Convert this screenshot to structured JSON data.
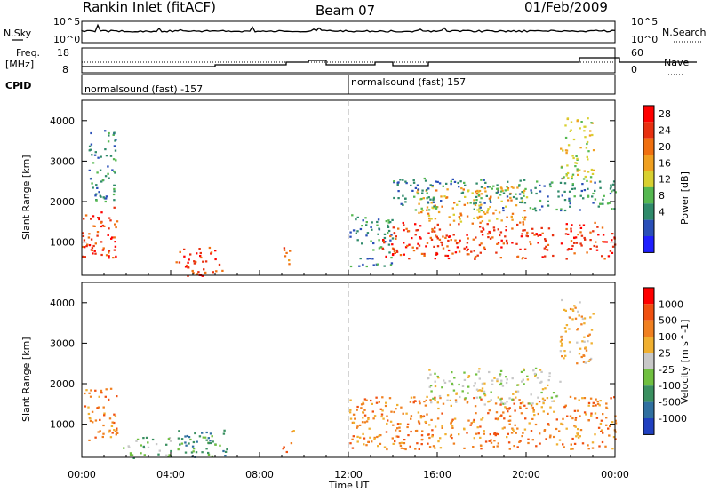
{
  "header": {
    "title": "Rankin Inlet (fitACF)",
    "beam": "Beam 07",
    "date": "01/Feb/2009"
  },
  "noise_panel": {
    "left_label": "N.Sky",
    "right_label": "N.Search",
    "y_ticks_left": [
      "10^5",
      "10^0"
    ],
    "y_ticks_right": [
      "10^5",
      "10^0"
    ]
  },
  "freq_panel": {
    "left_label": "Freq.",
    "left_unit": "[MHz]",
    "right_label": "Nave",
    "y_ticks_left": [
      "18",
      "8"
    ],
    "y_ticks_right": [
      "60",
      "0"
    ]
  },
  "cpid_panel": {
    "label": "CPID",
    "segments": [
      "normalsound (fast) -157",
      "normalsound (fast) 157"
    ]
  },
  "axes": {
    "ylabel": "Slant Range [km]",
    "xlabel": "Time UT",
    "y_ticks": [
      "4000",
      "3000",
      "2000",
      "1000"
    ],
    "x_ticks": [
      "00:00",
      "04:00",
      "08:00",
      "12:00",
      "16:00",
      "20:00",
      "00:00"
    ]
  },
  "colors": {
    "power_scale": [
      "#1f1fff",
      "#2a4fb8",
      "#2f8a6a",
      "#55b850",
      "#d8d030",
      "#f0a020",
      "#f07010",
      "#e83010",
      "#ff0000"
    ],
    "velocity_scale": [
      "#2040c0",
      "#3070a0",
      "#3a9060",
      "#70c040",
      "#c8c8c8",
      "#f0b030",
      "#f08020",
      "#f05010",
      "#ff0000"
    ]
  },
  "chart_data": [
    {
      "type": "heatmap",
      "title": "",
      "xlabel": "",
      "ylabel": "Slant Range [km]",
      "quantity": "Power",
      "colorbar_label": "Power [dB]",
      "colorbar_ticks": [
        "28",
        "24",
        "20",
        "16",
        "12",
        "8",
        "4"
      ],
      "xlim_hours": [
        0,
        24
      ],
      "ylim_km": [
        180,
        4500
      ],
      "regions": [
        {
          "t0": 0.0,
          "t1": 1.6,
          "r0": 600,
          "r1": 1900,
          "level": 7
        },
        {
          "t0": 0.3,
          "t1": 1.5,
          "r0": 2000,
          "r1": 3800,
          "level": 2
        },
        {
          "t0": 4.2,
          "t1": 6.5,
          "r0": 180,
          "r1": 900,
          "level": 7
        },
        {
          "t0": 9.0,
          "t1": 9.5,
          "r0": 300,
          "r1": 900,
          "level": 6
        },
        {
          "t0": 12.0,
          "t1": 14.0,
          "r0": 400,
          "r1": 1700,
          "level": 2
        },
        {
          "t0": 13.5,
          "t1": 24.0,
          "r0": 600,
          "r1": 1500,
          "level": 7
        },
        {
          "t0": 15.0,
          "t1": 20.0,
          "r0": 1500,
          "r1": 2400,
          "level": 5
        },
        {
          "t0": 14.0,
          "t1": 24.0,
          "r0": 1800,
          "r1": 2600,
          "level": 2
        },
        {
          "t0": 21.5,
          "t1": 23.0,
          "r0": 2500,
          "r1": 4100,
          "level": 4
        }
      ]
    },
    {
      "type": "heatmap",
      "title": "",
      "xlabel": "Time UT",
      "ylabel": "Slant Range [km]",
      "quantity": "Velocity",
      "colorbar_label": "Velocity [m s^-1]",
      "colorbar_ticks": [
        "1000",
        "500",
        "100",
        "25",
        "-25",
        "-100",
        "-500",
        "-1000"
      ],
      "xlim_hours": [
        0,
        24
      ],
      "ylim_km": [
        180,
        4500
      ],
      "regions": [
        {
          "t0": 0.0,
          "t1": 1.6,
          "r0": 600,
          "r1": 1900,
          "level": 6
        },
        {
          "t0": 4.2,
          "t1": 6.5,
          "r0": 180,
          "r1": 900,
          "level": 2
        },
        {
          "t0": 1.8,
          "t1": 4.0,
          "r0": 180,
          "r1": 700,
          "level": 3
        },
        {
          "t0": 9.0,
          "t1": 9.5,
          "r0": 300,
          "r1": 900,
          "level": 6
        },
        {
          "t0": 12.0,
          "t1": 24.0,
          "r0": 400,
          "r1": 1700,
          "level": 6
        },
        {
          "t0": 15.5,
          "t1": 21.5,
          "r0": 1500,
          "r1": 2400,
          "level": 4
        },
        {
          "t0": 21.5,
          "t1": 23.0,
          "r0": 2500,
          "r1": 4100,
          "level": 5
        }
      ]
    }
  ]
}
